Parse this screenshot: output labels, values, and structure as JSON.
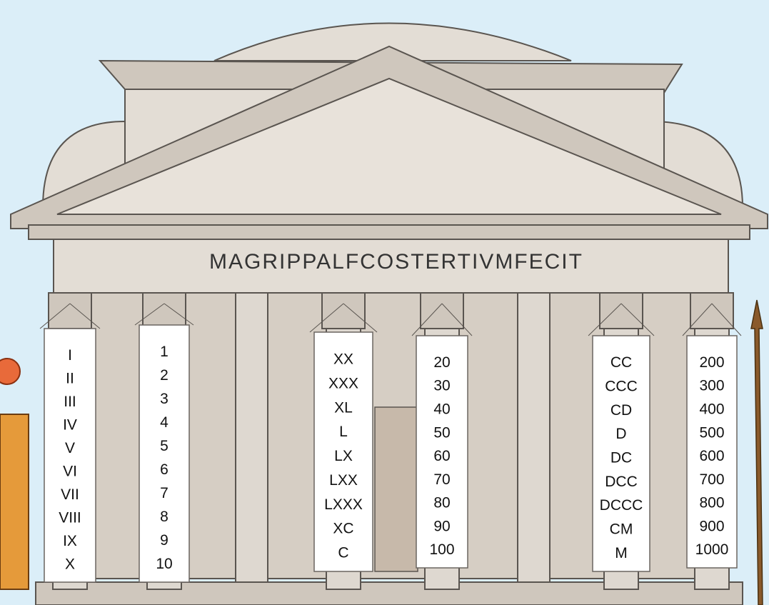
{
  "inscription": "MAGRIPPALFCOSTERTIVMFECIT",
  "banners": [
    {
      "items": [
        "I",
        "II",
        "III",
        "IV",
        "V",
        "VI",
        "VII",
        "VIII",
        "IX",
        "X"
      ]
    },
    {
      "items": [
        "1",
        "2",
        "3",
        "4",
        "5",
        "6",
        "7",
        "8",
        "9",
        "10"
      ]
    },
    {
      "items": [
        "XX",
        "XXX",
        "XL",
        "L",
        "LX",
        "LXX",
        "LXXX",
        "XC",
        "C"
      ]
    },
    {
      "items": [
        "20",
        "30",
        "40",
        "50",
        "60",
        "70",
        "80",
        "90",
        "100"
      ]
    },
    {
      "items": [
        "CC",
        "CCC",
        "CD",
        "D",
        "DC",
        "DCC",
        "DCCC",
        "CM",
        "M"
      ]
    },
    {
      "items": [
        "200",
        "300",
        "400",
        "500",
        "600",
        "700",
        "800",
        "900",
        "1000"
      ]
    }
  ]
}
